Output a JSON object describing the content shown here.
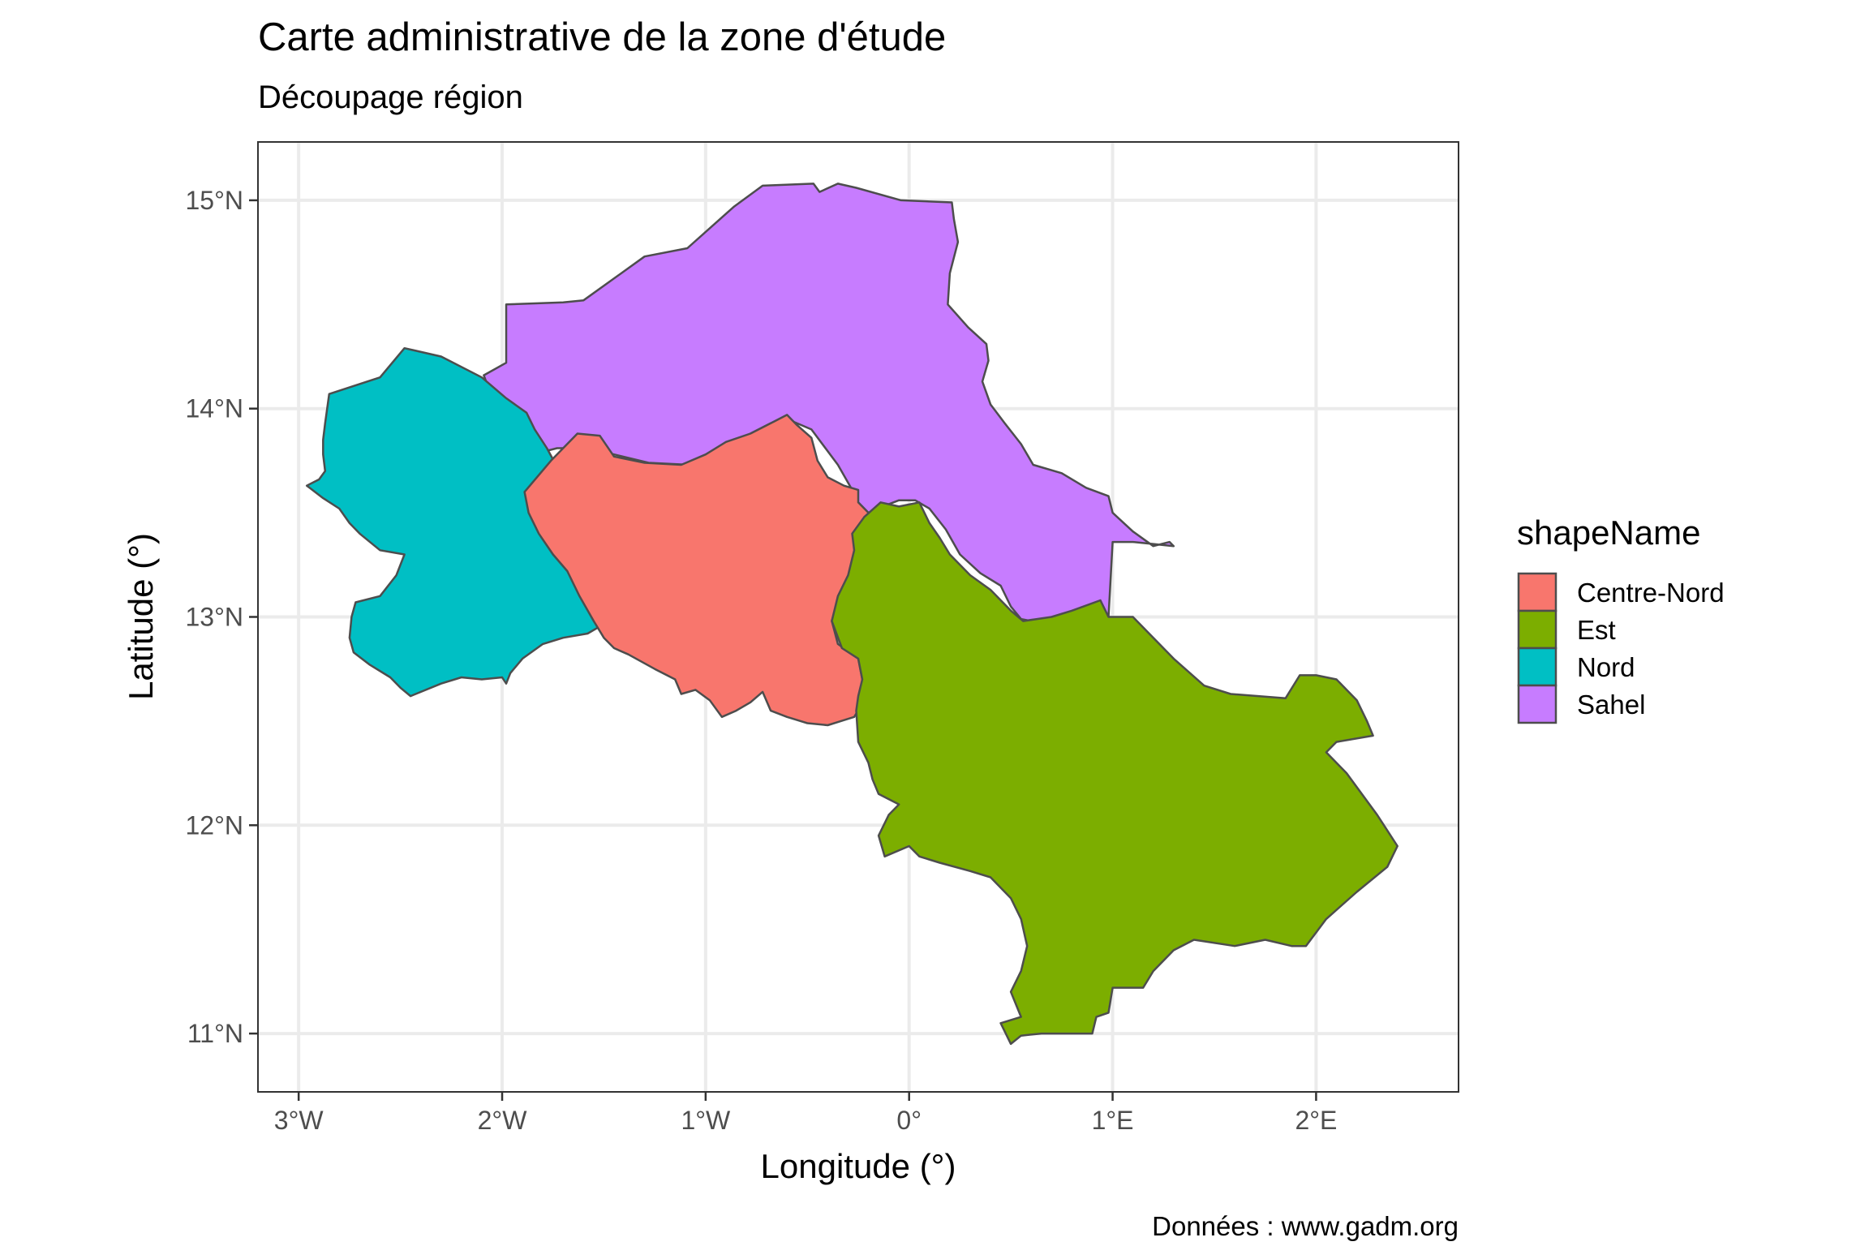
{
  "title": "Carte administrative de la zone d'étude",
  "subtitle": "Découpage région",
  "caption": "Données : www.gadm.org",
  "chart_data": {
    "type": "map",
    "xlabel": "Longitude (°)",
    "ylabel": "Latitude (°)",
    "xlim": [
      -3.2,
      2.7
    ],
    "ylim": [
      10.72,
      15.28
    ],
    "x_ticks": [
      {
        "value": -3,
        "label": "3°W"
      },
      {
        "value": -2,
        "label": "2°W"
      },
      {
        "value": -1,
        "label": "1°W"
      },
      {
        "value": 0,
        "label": "0°"
      },
      {
        "value": 1,
        "label": "1°E"
      },
      {
        "value": 2,
        "label": "2°E"
      }
    ],
    "y_ticks": [
      {
        "value": 11,
        "label": "11°N"
      },
      {
        "value": 12,
        "label": "12°N"
      },
      {
        "value": 13,
        "label": "13°N"
      },
      {
        "value": 14,
        "label": "14°N"
      },
      {
        "value": 15,
        "label": "15°N"
      }
    ],
    "grid": true,
    "legend": {
      "title": "shapeName",
      "placement": "right",
      "entries": [
        {
          "name": "Centre-Nord",
          "color": "#F8766D"
        },
        {
          "name": "Est",
          "color": "#7CAE00"
        },
        {
          "name": "Nord",
          "color": "#00BFC4"
        },
        {
          "name": "Sahel",
          "color": "#C77CFF"
        }
      ]
    },
    "regions": [
      {
        "name": "Sahel",
        "color": "#C77CFF",
        "coords": [
          [
            -2.09,
            14.16
          ],
          [
            -1.98,
            14.22
          ],
          [
            -1.98,
            14.5
          ],
          [
            -1.7,
            14.51
          ],
          [
            -1.6,
            14.52
          ],
          [
            -1.3,
            14.73
          ],
          [
            -1.09,
            14.77
          ],
          [
            -0.86,
            14.97
          ],
          [
            -0.72,
            15.07
          ],
          [
            -0.47,
            15.08
          ],
          [
            -0.44,
            15.04
          ],
          [
            -0.35,
            15.08
          ],
          [
            -0.26,
            15.06
          ],
          [
            -0.04,
            15.0
          ],
          [
            0.21,
            14.99
          ],
          [
            0.22,
            14.91
          ],
          [
            0.24,
            14.8
          ],
          [
            0.2,
            14.65
          ],
          [
            0.19,
            14.5
          ],
          [
            0.29,
            14.39
          ],
          [
            0.38,
            14.31
          ],
          [
            0.39,
            14.23
          ],
          [
            0.36,
            14.13
          ],
          [
            0.4,
            14.02
          ],
          [
            0.47,
            13.93
          ],
          [
            0.55,
            13.83
          ],
          [
            0.61,
            13.73
          ],
          [
            0.75,
            13.69
          ],
          [
            0.87,
            13.62
          ],
          [
            0.98,
            13.58
          ],
          [
            1.0,
            13.5
          ],
          [
            1.1,
            13.41
          ],
          [
            1.2,
            13.34
          ],
          [
            1.28,
            13.36
          ],
          [
            1.3,
            13.34
          ],
          [
            1.2,
            13.35
          ],
          [
            1.1,
            13.36
          ],
          [
            1.0,
            13.36
          ],
          [
            0.98,
            13.0
          ],
          [
            0.9,
            13.03
          ],
          [
            0.8,
            13.0
          ],
          [
            0.7,
            12.99
          ],
          [
            0.6,
            12.98
          ],
          [
            0.55,
            12.99
          ],
          [
            0.5,
            13.05
          ],
          [
            0.45,
            13.15
          ],
          [
            0.35,
            13.21
          ],
          [
            0.25,
            13.3
          ],
          [
            0.18,
            13.42
          ],
          [
            0.1,
            13.52
          ],
          [
            0.03,
            13.56
          ],
          [
            -0.05,
            13.56
          ],
          [
            -0.13,
            13.53
          ],
          [
            -0.2,
            13.5
          ],
          [
            -0.25,
            13.55
          ],
          [
            -0.28,
            13.61
          ],
          [
            -0.35,
            13.73
          ],
          [
            -0.48,
            13.9
          ],
          [
            -0.6,
            13.95
          ],
          [
            -0.68,
            13.93
          ],
          [
            -0.78,
            13.88
          ],
          [
            -0.9,
            13.8
          ],
          [
            -1.08,
            13.73
          ],
          [
            -1.28,
            13.74
          ],
          [
            -1.45,
            13.78
          ],
          [
            -1.58,
            13.81
          ],
          [
            -1.73,
            13.81
          ],
          [
            -1.85,
            13.78
          ],
          [
            -1.95,
            13.84
          ],
          [
            -2.0,
            13.92
          ],
          [
            -2.03,
            14.0
          ],
          [
            -2.09,
            14.16
          ]
        ]
      },
      {
        "name": "Nord",
        "color": "#00BFC4",
        "coords": [
          [
            -2.85,
            14.07
          ],
          [
            -2.6,
            14.15
          ],
          [
            -2.48,
            14.29
          ],
          [
            -2.3,
            14.25
          ],
          [
            -2.1,
            14.15
          ],
          [
            -1.98,
            14.05
          ],
          [
            -1.88,
            13.98
          ],
          [
            -1.84,
            13.9
          ],
          [
            -1.78,
            13.81
          ],
          [
            -1.73,
            13.72
          ],
          [
            -1.7,
            13.63
          ],
          [
            -1.76,
            13.5
          ],
          [
            -1.73,
            13.4
          ],
          [
            -1.7,
            13.3
          ],
          [
            -1.65,
            13.2
          ],
          [
            -1.6,
            13.12
          ],
          [
            -1.55,
            13.05
          ],
          [
            -1.51,
            12.96
          ],
          [
            -1.58,
            12.92
          ],
          [
            -1.7,
            12.9
          ],
          [
            -1.8,
            12.87
          ],
          [
            -1.9,
            12.8
          ],
          [
            -1.96,
            12.73
          ],
          [
            -1.98,
            12.68
          ],
          [
            -2.0,
            12.71
          ],
          [
            -2.1,
            12.7
          ],
          [
            -2.2,
            12.71
          ],
          [
            -2.3,
            12.68
          ],
          [
            -2.45,
            12.62
          ],
          [
            -2.5,
            12.66
          ],
          [
            -2.55,
            12.71
          ],
          [
            -2.65,
            12.77
          ],
          [
            -2.73,
            12.83
          ],
          [
            -2.75,
            12.9
          ],
          [
            -2.74,
            13.0
          ],
          [
            -2.72,
            13.07
          ],
          [
            -2.6,
            13.1
          ],
          [
            -2.52,
            13.2
          ],
          [
            -2.48,
            13.3
          ],
          [
            -2.6,
            13.32
          ],
          [
            -2.7,
            13.4
          ],
          [
            -2.75,
            13.45
          ],
          [
            -2.8,
            13.52
          ],
          [
            -2.88,
            13.57
          ],
          [
            -2.96,
            13.63
          ],
          [
            -2.9,
            13.66
          ],
          [
            -2.87,
            13.7
          ],
          [
            -2.88,
            13.78
          ],
          [
            -2.88,
            13.85
          ],
          [
            -2.87,
            13.93
          ],
          [
            -2.85,
            14.07
          ]
        ]
      },
      {
        "name": "Centre-Nord",
        "color": "#F8766D",
        "coords": [
          [
            -1.89,
            13.6
          ],
          [
            -1.76,
            13.75
          ],
          [
            -1.63,
            13.88
          ],
          [
            -1.52,
            13.87
          ],
          [
            -1.45,
            13.77
          ],
          [
            -1.3,
            13.74
          ],
          [
            -1.12,
            13.73
          ],
          [
            -1.0,
            13.78
          ],
          [
            -0.9,
            13.84
          ],
          [
            -0.78,
            13.88
          ],
          [
            -0.66,
            13.94
          ],
          [
            -0.6,
            13.97
          ],
          [
            -0.55,
            13.92
          ],
          [
            -0.48,
            13.86
          ],
          [
            -0.45,
            13.75
          ],
          [
            -0.4,
            13.67
          ],
          [
            -0.32,
            13.63
          ],
          [
            -0.25,
            13.61
          ],
          [
            -0.25,
            13.55
          ],
          [
            -0.18,
            13.48
          ],
          [
            -0.22,
            13.4
          ],
          [
            -0.25,
            13.32
          ],
          [
            -0.3,
            13.18
          ],
          [
            -0.35,
            13.08
          ],
          [
            -0.38,
            12.98
          ],
          [
            -0.35,
            12.87
          ],
          [
            -0.25,
            12.8
          ],
          [
            -0.23,
            12.7
          ],
          [
            -0.22,
            12.6
          ],
          [
            -0.27,
            12.52
          ],
          [
            -0.4,
            12.48
          ],
          [
            -0.5,
            12.49
          ],
          [
            -0.6,
            12.52
          ],
          [
            -0.68,
            12.55
          ],
          [
            -0.72,
            12.64
          ],
          [
            -0.78,
            12.59
          ],
          [
            -0.85,
            12.55
          ],
          [
            -0.92,
            12.52
          ],
          [
            -0.98,
            12.6
          ],
          [
            -1.05,
            12.65
          ],
          [
            -1.12,
            12.63
          ],
          [
            -1.15,
            12.7
          ],
          [
            -1.25,
            12.75
          ],
          [
            -1.38,
            12.82
          ],
          [
            -1.45,
            12.85
          ],
          [
            -1.5,
            12.9
          ],
          [
            -1.55,
            12.98
          ],
          [
            -1.62,
            13.1
          ],
          [
            -1.68,
            13.22
          ],
          [
            -1.75,
            13.3
          ],
          [
            -1.82,
            13.4
          ],
          [
            -1.87,
            13.5
          ],
          [
            -1.89,
            13.6
          ]
        ]
      },
      {
        "name": "Est",
        "color": "#7CAE00",
        "coords": [
          [
            -0.22,
            13.48
          ],
          [
            -0.14,
            13.55
          ],
          [
            -0.05,
            13.53
          ],
          [
            0.05,
            13.55
          ],
          [
            0.1,
            13.45
          ],
          [
            0.15,
            13.38
          ],
          [
            0.2,
            13.3
          ],
          [
            0.3,
            13.2
          ],
          [
            0.4,
            13.13
          ],
          [
            0.5,
            13.03
          ],
          [
            0.56,
            12.98
          ],
          [
            0.7,
            13.0
          ],
          [
            0.8,
            13.03
          ],
          [
            0.94,
            13.08
          ],
          [
            0.98,
            13.0
          ],
          [
            1.1,
            13.0
          ],
          [
            1.3,
            12.8
          ],
          [
            1.45,
            12.67
          ],
          [
            1.58,
            12.63
          ],
          [
            1.85,
            12.61
          ],
          [
            1.92,
            12.72
          ],
          [
            2.0,
            12.72
          ],
          [
            2.1,
            12.7
          ],
          [
            2.2,
            12.6
          ],
          [
            2.25,
            12.5
          ],
          [
            2.28,
            12.43
          ],
          [
            2.1,
            12.4
          ],
          [
            2.05,
            12.35
          ],
          [
            2.15,
            12.25
          ],
          [
            2.3,
            12.05
          ],
          [
            2.4,
            11.9
          ],
          [
            2.35,
            11.8
          ],
          [
            2.2,
            11.68
          ],
          [
            2.05,
            11.55
          ],
          [
            1.95,
            11.42
          ],
          [
            1.88,
            11.42
          ],
          [
            1.75,
            11.45
          ],
          [
            1.6,
            11.42
          ],
          [
            1.4,
            11.45
          ],
          [
            1.3,
            11.4
          ],
          [
            1.2,
            11.3
          ],
          [
            1.15,
            11.22
          ],
          [
            1.0,
            11.22
          ],
          [
            0.98,
            11.1
          ],
          [
            0.92,
            11.08
          ],
          [
            0.9,
            11.0
          ],
          [
            0.75,
            11.0
          ],
          [
            0.65,
            11.0
          ],
          [
            0.55,
            10.99
          ],
          [
            0.5,
            10.95
          ],
          [
            0.45,
            11.05
          ],
          [
            0.55,
            11.08
          ],
          [
            0.5,
            11.2
          ],
          [
            0.55,
            11.3
          ],
          [
            0.58,
            11.42
          ],
          [
            0.55,
            11.55
          ],
          [
            0.5,
            11.65
          ],
          [
            0.4,
            11.75
          ],
          [
            0.3,
            11.78
          ],
          [
            0.15,
            11.82
          ],
          [
            0.05,
            11.85
          ],
          [
            0.0,
            11.9
          ],
          [
            -0.12,
            11.85
          ],
          [
            -0.15,
            11.95
          ],
          [
            -0.1,
            12.05
          ],
          [
            -0.05,
            12.1
          ],
          [
            -0.15,
            12.15
          ],
          [
            -0.18,
            12.22
          ],
          [
            -0.2,
            12.3
          ],
          [
            -0.25,
            12.4
          ],
          [
            -0.26,
            12.55
          ],
          [
            -0.25,
            12.62
          ],
          [
            -0.23,
            12.7
          ],
          [
            -0.25,
            12.8
          ],
          [
            -0.33,
            12.85
          ],
          [
            -0.38,
            12.98
          ],
          [
            -0.35,
            13.1
          ],
          [
            -0.3,
            13.2
          ],
          [
            -0.27,
            13.32
          ],
          [
            -0.28,
            13.4
          ],
          [
            -0.22,
            13.48
          ]
        ]
      }
    ]
  }
}
